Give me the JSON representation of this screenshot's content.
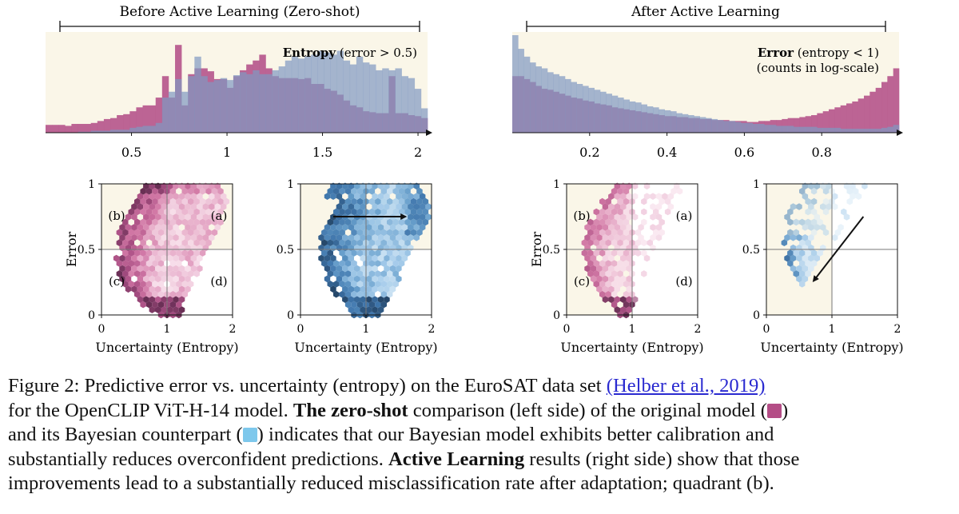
{
  "colors": {
    "panel_bg": "#faf6e8",
    "original": "#b44d86",
    "bayesian": "#5b97c8",
    "hist_original": "#b85c8f",
    "hist_bayesian": "#7f98c2"
  },
  "sections": {
    "left_header": "Before Active Learning (Zero-shot)",
    "right_header": "After Active Learning"
  },
  "hist_left": {
    "title_bold": "Entropy",
    "title_rest": " (error > 0.5)",
    "ticks": [
      "0.5",
      "1",
      "1.5",
      "2"
    ]
  },
  "hist_right": {
    "title_bold": "Error",
    "title_rest": " (entropy < 1)",
    "subtitle": "(counts in log-scale)",
    "ticks": [
      "0.2",
      "0.4",
      "0.6",
      "0.8"
    ]
  },
  "scatter": {
    "ylabel": "Error",
    "xlabel": "Uncertainty (Entropy)",
    "xticks": [
      "0",
      "1",
      "2"
    ],
    "yticks": [
      "1",
      "0.5",
      "0"
    ],
    "quadrants": [
      "(a)",
      "(b)",
      "(c)",
      "(d)"
    ]
  },
  "chart_data": [
    {
      "type": "bar",
      "xlim": [
        0.05,
        2.05
      ],
      "series": [
        {
          "values": [
            0.08,
            0.08,
            0.08,
            0.07,
            0.09,
            0.09,
            0.09,
            0.1,
            0.12,
            0.14,
            0.15,
            0.18,
            0.19,
            0.22,
            0.26,
            0.28,
            0.28,
            0.36,
            0.58,
            0.36,
            0.9,
            0.28,
            0.6,
            0.66,
            0.66,
            0.63,
            0.55,
            0.55,
            0.46,
            0.58,
            0.64,
            0.7,
            0.74,
            0.8,
            0.66,
            0.58,
            0.56,
            0.56,
            0.56,
            0.55,
            0.56,
            0.5,
            0.5,
            0.45,
            0.43,
            0.39,
            0.33,
            0.28,
            0.26,
            0.22,
            0.21,
            0.2,
            0.2,
            0.58,
            0.2,
            0.2,
            0.18,
            0.17,
            0.15
          ]
        },
        {
          "values": [
            0.0,
            0.0,
            0.0,
            0.0,
            0.0,
            0.01,
            0.01,
            0.02,
            0.02,
            0.02,
            0.03,
            0.03,
            0.03,
            0.05,
            0.06,
            0.07,
            0.07,
            0.1,
            0.36,
            0.42,
            0.55,
            0.42,
            0.58,
            0.78,
            0.58,
            0.52,
            0.54,
            0.56,
            0.54,
            0.59,
            0.62,
            0.6,
            0.64,
            0.6,
            0.6,
            0.64,
            0.68,
            0.74,
            0.78,
            0.76,
            0.78,
            0.8,
            0.84,
            0.82,
            0.8,
            0.84,
            0.74,
            0.7,
            0.78,
            0.72,
            0.7,
            0.64,
            0.66,
            0.64,
            0.66,
            0.58,
            0.56,
            0.45,
            0.25
          ]
        }
      ]
    },
    {
      "type": "bar",
      "xlim": [
        0.0,
        1.0
      ],
      "scale": "log",
      "series": [
        {
          "values": [
            0.58,
            0.58,
            0.55,
            0.52,
            0.48,
            0.45,
            0.44,
            0.42,
            0.4,
            0.38,
            0.36,
            0.35,
            0.33,
            0.32,
            0.3,
            0.29,
            0.28,
            0.26,
            0.25,
            0.24,
            0.23,
            0.22,
            0.21,
            0.2,
            0.19,
            0.18,
            0.17,
            0.17,
            0.16,
            0.16,
            0.15,
            0.15,
            0.14,
            0.14,
            0.13,
            0.13,
            0.13,
            0.12,
            0.12,
            0.12,
            0.11,
            0.11,
            0.12,
            0.12,
            0.13,
            0.13,
            0.14,
            0.15,
            0.15,
            0.16,
            0.17,
            0.18,
            0.2,
            0.22,
            0.24,
            0.26,
            0.28,
            0.3,
            0.32,
            0.35,
            0.38,
            0.42,
            0.46,
            0.52,
            0.58,
            0.66
          ]
        },
        {
          "values": [
            1.0,
            0.86,
            0.78,
            0.72,
            0.68,
            0.66,
            0.62,
            0.6,
            0.58,
            0.55,
            0.52,
            0.5,
            0.48,
            0.46,
            0.44,
            0.42,
            0.4,
            0.38,
            0.36,
            0.34,
            0.32,
            0.31,
            0.29,
            0.27,
            0.26,
            0.24,
            0.23,
            0.22,
            0.2,
            0.19,
            0.18,
            0.17,
            0.16,
            0.15,
            0.14,
            0.13,
            0.12,
            0.12,
            0.11,
            0.1,
            0.1,
            0.09,
            0.09,
            0.08,
            0.08,
            0.07,
            0.07,
            0.07,
            0.06,
            0.06,
            0.06,
            0.06,
            0.05,
            0.05,
            0.05,
            0.05,
            0.04,
            0.04,
            0.04,
            0.04,
            0.04,
            0.04,
            0.04,
            0.05,
            0.06,
            0.08
          ]
        }
      ]
    },
    {
      "type": "heatmap",
      "xlim": [
        0,
        2
      ],
      "ylim": [
        0,
        1
      ]
    },
    {
      "type": "heatmap",
      "xlim": [
        0,
        2
      ],
      "ylim": [
        0,
        1
      ]
    },
    {
      "type": "heatmap",
      "xlim": [
        0,
        2
      ],
      "ylim": [
        0,
        1
      ]
    },
    {
      "type": "heatmap",
      "xlim": [
        0,
        2
      ],
      "ylim": [
        0,
        1
      ]
    }
  ],
  "caption": {
    "lines": [
      [
        "Figure 2: Predictive error vs. uncertainty (entropy) on the EuroSAT data set ",
        "@link:(Helber et al., 2019)"
      ],
      [
        "for the OpenCLIP ViT-H-14 model. ",
        "*The zero-shot",
        " comparison (left side) of the original model (",
        "@sw:original",
        ")"
      ],
      [
        "and its Bayesian counterpart (",
        "@sw:bayesian",
        ") indicates that our Bayesian model exhibits better calibration and"
      ],
      [
        "substantially reduces overconfident predictions. ",
        "*Active Learning",
        " results (right side) show that those"
      ],
      [
        "improvements lead to a substantially reduced misclassification rate after adaptation; quadrant (b)."
      ]
    ]
  }
}
